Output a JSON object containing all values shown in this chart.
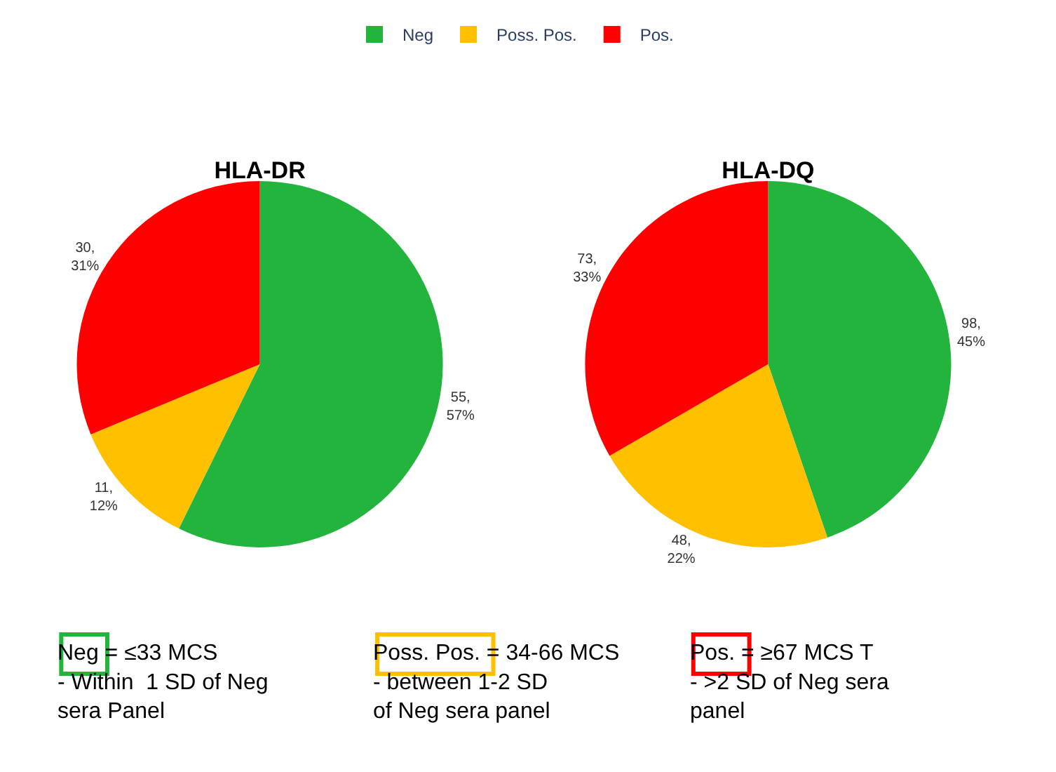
{
  "chart_data": [
    {
      "type": "pie",
      "title": "HLA-DR",
      "categories": [
        "Neg",
        "Poss. Pos.",
        "Pos."
      ],
      "values": [
        55,
        11,
        30
      ],
      "colors": [
        "#22b43c",
        "#ffc000",
        "#ff0000"
      ],
      "value_labels": [
        "55,\n57%",
        "11,\n12%",
        "30,\n31%"
      ],
      "legend": "top"
    },
    {
      "type": "pie",
      "title": "HLA-DQ",
      "categories": [
        null,
        null,
        null
      ],
      "values": [
        98,
        48,
        73
      ],
      "colors": [
        "#22b43c",
        "#ffc000",
        "#ff0000"
      ],
      "value_labels": [
        "98,\n45%",
        "48,\n22%",
        "73,\n33%"
      ]
    },
    {
      "type": "other",
      "annotations": [
        "Neg",
        "= ≤33 MCS\n- Within  1 SD of Neg\nsera Panel",
        "Poss. Pos.",
        "= 34-66 MCS\n- between 1-2 SD\nof Neg sera panel",
        "Pos.",
        "= ≥67 MCS T\n- >2 SD of Neg sera\npanel"
      ]
    }
  ]
}
